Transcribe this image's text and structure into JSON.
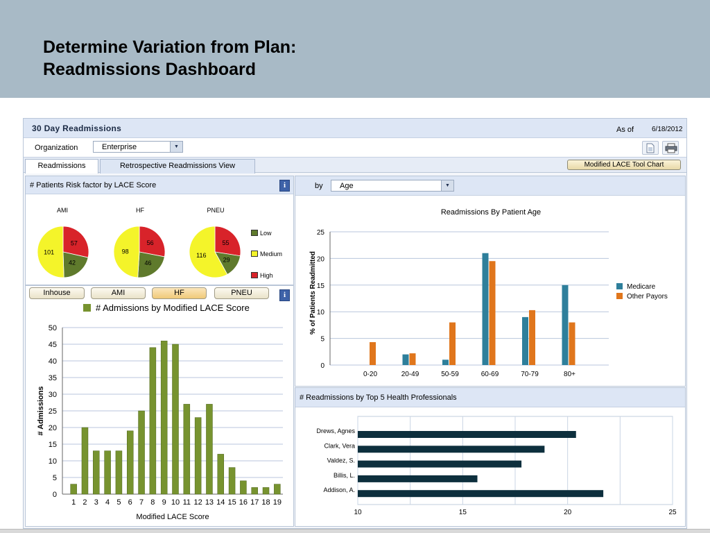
{
  "slide": {
    "title": "Determine Variation from Plan:\nReadmissions Dashboard"
  },
  "app": {
    "title": "30 Day Readmissions",
    "as_of_label": "As of",
    "as_of_value": "6/18/2012",
    "organization_label": "Organization",
    "organization_value": "Enterprise",
    "tabs": [
      {
        "label": "Readmissions",
        "active": true
      },
      {
        "label": "Retrospective Readmissions View",
        "active": false
      }
    ],
    "lace_tool_button": "Modified LACE Tool Chart",
    "icons": {
      "document": "document-icon",
      "print": "printer-icon",
      "dropdown": "chevron-down-icon",
      "info": "info-icon"
    }
  },
  "risk_panel": {
    "title": "# Patients Risk factor by LACE Score",
    "info": "i",
    "legend": [
      {
        "label": "Low",
        "color": "#5f7a2c"
      },
      {
        "label": "Medium",
        "color": "#f4f42a"
      },
      {
        "label": "High",
        "color": "#d8232a"
      }
    ],
    "pies": [
      {
        "name": "AMI",
        "low": 42,
        "medium": 101,
        "high": 57
      },
      {
        "name": "HF",
        "low": 46,
        "medium": 98,
        "high": 56
      },
      {
        "name": "PNEU",
        "low": 29,
        "medium": 116,
        "high": 55
      }
    ]
  },
  "filter_pills": [
    {
      "label": "Inhouse",
      "selected": false
    },
    {
      "label": "AMI",
      "selected": false
    },
    {
      "label": "HF",
      "selected": true
    },
    {
      "label": "PNEU",
      "selected": false
    }
  ],
  "age_filter": {
    "by_label": "by",
    "value": "Age"
  },
  "top5_panel": {
    "title": "# Readmissions by Top 5 Health Professionals"
  },
  "colors": {
    "olive": "#77932f",
    "teal": "#2e7f9b",
    "orange": "#e0761c",
    "navy": "#0d2f3d",
    "panel_head": "#dde6f5"
  },
  "chart_data": [
    {
      "type": "bar",
      "id": "lace",
      "title": "",
      "legend": "# Admissions by Modified LACE Score",
      "xlabel": "Modified LACE Score",
      "ylabel": "# Admissions",
      "ylim": [
        0,
        50
      ],
      "yticks": [
        0,
        5,
        10,
        15,
        20,
        25,
        30,
        35,
        40,
        45,
        50
      ],
      "categories": [
        "1",
        "2",
        "3",
        "4",
        "5",
        "6",
        "7",
        "8",
        "9",
        "10",
        "11",
        "12",
        "13",
        "14",
        "15",
        "16",
        "17",
        "18",
        "19"
      ],
      "values": [
        3,
        20,
        13,
        13,
        13,
        19,
        25,
        44,
        46,
        45,
        27,
        23,
        27,
        12,
        8,
        4,
        2,
        2,
        3
      ],
      "grid": true
    },
    {
      "type": "bar",
      "id": "age",
      "title": "Readmissions By Patient Age",
      "xlabel": "",
      "ylabel": "% of Patients Readmitted",
      "ylim": [
        0,
        25
      ],
      "yticks": [
        0,
        5,
        10,
        15,
        20,
        25
      ],
      "categories": [
        "0-20",
        "20-49",
        "50-59",
        "60-69",
        "70-79",
        "80+"
      ],
      "series": [
        {
          "name": "Medicare",
          "values": [
            0,
            2,
            1,
            21,
            9,
            15
          ]
        },
        {
          "name": "Other Payors",
          "values": [
            4.3,
            2.2,
            8,
            19.5,
            10.3,
            8
          ]
        }
      ],
      "legend_position": "right",
      "grid": true
    },
    {
      "type": "bar",
      "id": "top5",
      "orientation": "horizontal",
      "title": "",
      "categories": [
        "Drews, Agnes",
        "Clark, Vera",
        "Valdez, S.",
        "Billis, L.",
        "Addison, A."
      ],
      "values": [
        20.4,
        18.9,
        17.8,
        15.7,
        21.7
      ],
      "xlim": [
        10,
        25
      ],
      "xticks": [
        10,
        15,
        20,
        25
      ],
      "grid": true
    }
  ]
}
